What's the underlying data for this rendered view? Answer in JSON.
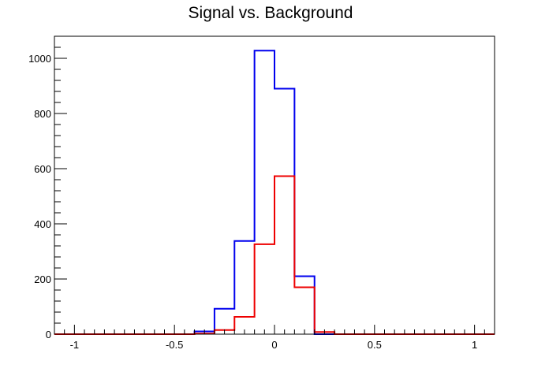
{
  "chart_data": {
    "type": "histogram",
    "title": "Signal vs. Background",
    "xlabel": "",
    "ylabel": "",
    "xlim": [
      -1.1,
      1.1
    ],
    "ylim": [
      0,
      1080
    ],
    "grid": false,
    "bin_edges": [
      -1.1,
      -1.0,
      -0.9,
      -0.8,
      -0.7,
      -0.6,
      -0.5,
      -0.4,
      -0.3,
      -0.2,
      -0.1,
      0.0,
      0.1,
      0.2,
      0.3,
      0.4,
      0.5,
      0.6,
      0.7,
      0.8,
      0.9,
      1.0,
      1.1
    ],
    "x_ticks": [
      {
        "value": -1,
        "label": "-1"
      },
      {
        "value": -0.5,
        "label": "-0.5"
      },
      {
        "value": 0,
        "label": "0"
      },
      {
        "value": 0.5,
        "label": "0.5"
      },
      {
        "value": 1,
        "label": "1"
      }
    ],
    "y_ticks": [
      {
        "value": 0,
        "label": "0"
      },
      {
        "value": 200,
        "label": "200"
      },
      {
        "value": 400,
        "label": "400"
      },
      {
        "value": 600,
        "label": "600"
      },
      {
        "value": 800,
        "label": "800"
      },
      {
        "value": 1000,
        "label": "1000"
      }
    ],
    "series": [
      {
        "color": "#0000ee",
        "values": [
          0,
          0,
          0,
          0,
          0,
          0,
          0,
          10,
          92,
          338,
          1028,
          890,
          210,
          0,
          0,
          0,
          0,
          0,
          0,
          0,
          0,
          0
        ]
      },
      {
        "color": "#ee0000",
        "values": [
          0,
          0,
          0,
          0,
          0,
          0,
          0,
          2,
          15,
          63,
          326,
          573,
          170,
          8,
          0,
          0,
          0,
          0,
          0,
          0,
          0,
          0
        ]
      }
    ]
  }
}
